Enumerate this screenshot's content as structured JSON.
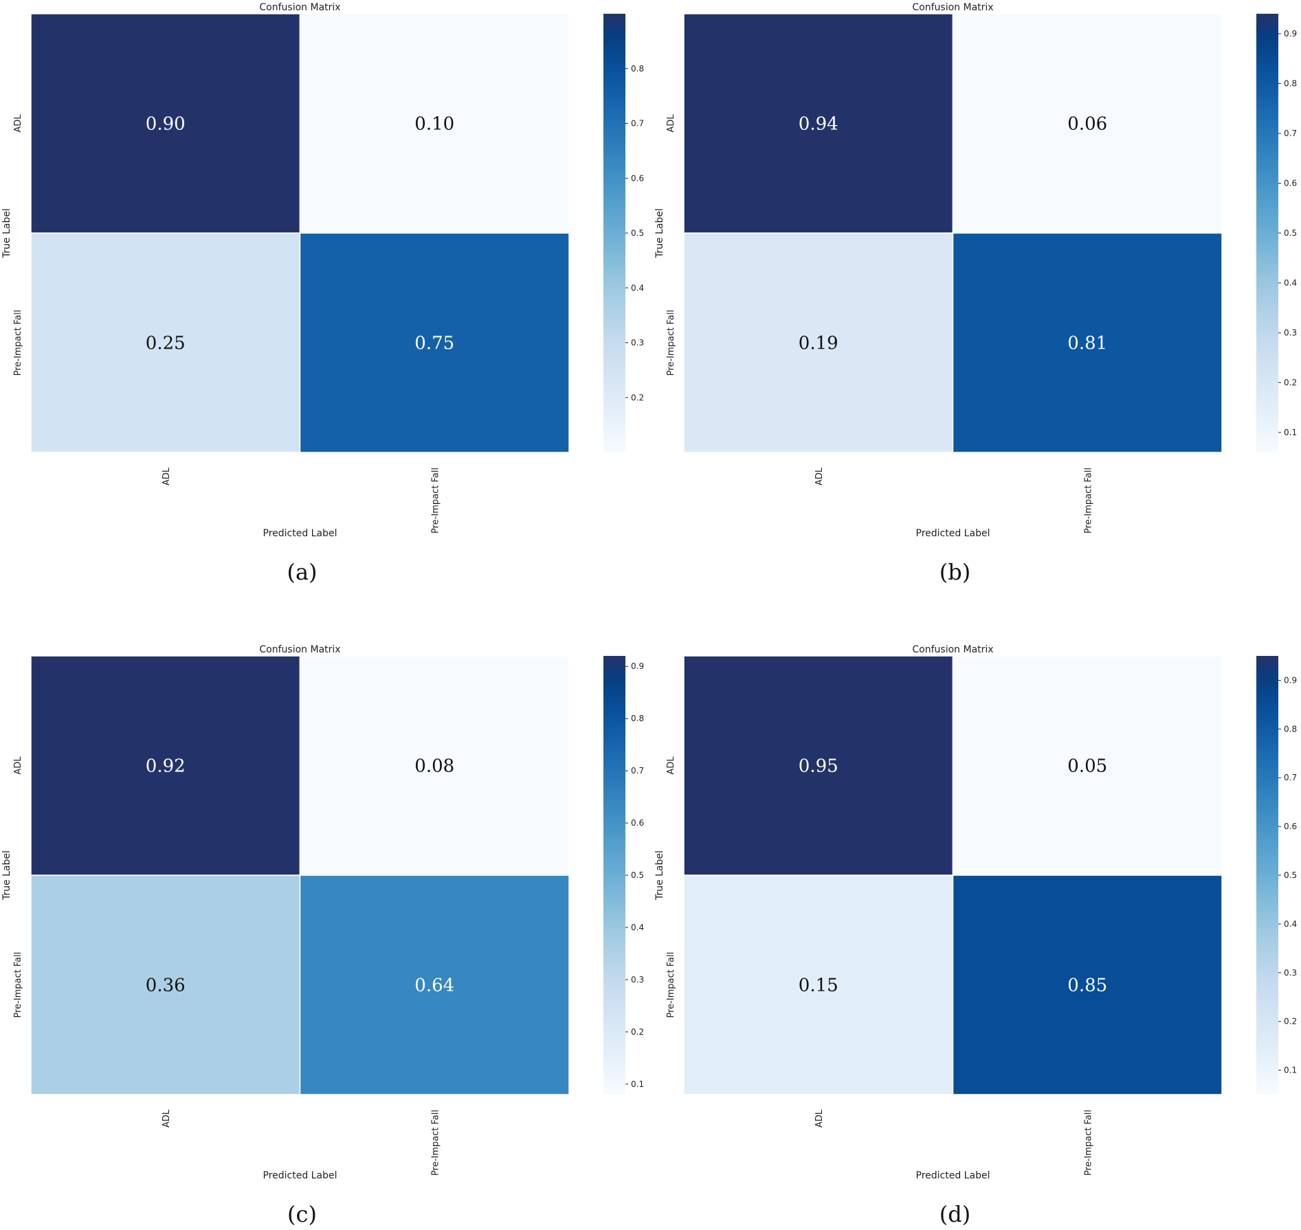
{
  "chart_data": [
    {
      "type": "heatmap",
      "panel_label": "(a)",
      "title": "Confusion Matrix",
      "xlabel": "Predicted Label",
      "ylabel": "True Label",
      "x_categories": [
        "ADL",
        "Pre-Impact Fall"
      ],
      "y_categories": [
        "ADL",
        "Pre-Impact Fall"
      ],
      "values": [
        [
          0.9,
          0.1
        ],
        [
          0.25,
          0.75
        ]
      ],
      "cell_labels": [
        [
          "0.90",
          "0.10"
        ],
        [
          "0.25",
          "0.75"
        ]
      ],
      "colorbar": {
        "range": [
          0.1,
          0.9
        ],
        "ticks": [
          "0.2",
          "0.3",
          "0.4",
          "0.5",
          "0.6",
          "0.7",
          "0.8"
        ],
        "tick_values": [
          0.2,
          0.3,
          0.4,
          0.5,
          0.6,
          0.7,
          0.8
        ]
      }
    },
    {
      "type": "heatmap",
      "panel_label": "(b)",
      "title": "Confusion Matrix",
      "xlabel": "Predicted Label",
      "ylabel": "True Label",
      "x_categories": [
        "ADL",
        "Pre-Impact Fall"
      ],
      "y_categories": [
        "ADL",
        "Pre-Impact Fall"
      ],
      "values": [
        [
          0.94,
          0.06
        ],
        [
          0.19,
          0.81
        ]
      ],
      "cell_labels": [
        [
          "0.94",
          "0.06"
        ],
        [
          "0.19",
          "0.81"
        ]
      ],
      "colorbar": {
        "range": [
          0.06,
          0.94
        ],
        "ticks": [
          "0.1",
          "0.2",
          "0.3",
          "0.4",
          "0.5",
          "0.6",
          "0.7",
          "0.8",
          "0.9"
        ],
        "tick_values": [
          0.1,
          0.2,
          0.3,
          0.4,
          0.5,
          0.6,
          0.7,
          0.8,
          0.9
        ]
      }
    },
    {
      "type": "heatmap",
      "panel_label": "(c)",
      "title": "Confusion Matrix",
      "xlabel": "Predicted Label",
      "ylabel": "True Label",
      "x_categories": [
        "ADL",
        "Pre-Impact Fall"
      ],
      "y_categories": [
        "ADL",
        "Pre-Impact Fall"
      ],
      "values": [
        [
          0.92,
          0.08
        ],
        [
          0.36,
          0.64
        ]
      ],
      "cell_labels": [
        [
          "0.92",
          "0.08"
        ],
        [
          "0.36",
          "0.64"
        ]
      ],
      "colorbar": {
        "range": [
          0.08,
          0.92
        ],
        "ticks": [
          "0.1",
          "0.2",
          "0.3",
          "0.4",
          "0.5",
          "0.6",
          "0.7",
          "0.8",
          "0.9"
        ],
        "tick_values": [
          0.1,
          0.2,
          0.3,
          0.4,
          0.5,
          0.6,
          0.7,
          0.8,
          0.9
        ]
      }
    },
    {
      "type": "heatmap",
      "panel_label": "(d)",
      "title": "Confusion Matrix",
      "xlabel": "Predicted Label",
      "ylabel": "True Label",
      "x_categories": [
        "ADL",
        "Pre-Impact Fall"
      ],
      "y_categories": [
        "ADL",
        "Pre-Impact Fall"
      ],
      "values": [
        [
          0.95,
          0.05
        ],
        [
          0.15,
          0.85
        ]
      ],
      "cell_labels": [
        [
          "0.95",
          "0.05"
        ],
        [
          "0.15",
          "0.85"
        ]
      ],
      "colorbar": {
        "range": [
          0.05,
          0.95
        ],
        "ticks": [
          "0.1",
          "0.2",
          "0.3",
          "0.4",
          "0.5",
          "0.6",
          "0.7",
          "0.8",
          "0.9"
        ],
        "tick_values": [
          0.1,
          0.2,
          0.3,
          0.4,
          0.5,
          0.6,
          0.7,
          0.8,
          0.9
        ]
      }
    }
  ],
  "colormap": {
    "name": "Blues",
    "stops": [
      "#f7fbff",
      "#deebf7",
      "#c6dbef",
      "#9ecae1",
      "#6baed6",
      "#4292c6",
      "#2171b5",
      "#08519c",
      "#08306b"
    ]
  },
  "colors": {
    "max_cell": "#23336a",
    "dark_text": "#111111",
    "light_text": "#ffffff"
  }
}
